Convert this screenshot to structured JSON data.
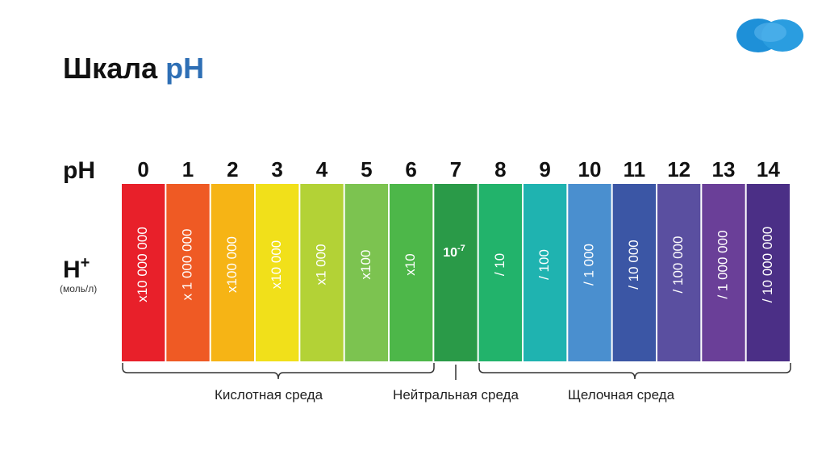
{
  "header": {
    "title": "Шкала",
    "title_accent": "pH"
  },
  "row_labels": {
    "ph": "pH",
    "h": "H",
    "h_sup": "+",
    "unit": "(моль/л)"
  },
  "cells": [
    {
      "ph": "0",
      "h": "x10 000 000",
      "color": "#e8202a"
    },
    {
      "ph": "1",
      "h": "x 1 000 000",
      "color": "#ef5a24"
    },
    {
      "ph": "2",
      "h": "x100 000",
      "color": "#f6b415"
    },
    {
      "ph": "3",
      "h": "x10 000",
      "color": "#f1e01a"
    },
    {
      "ph": "4",
      "h": "x1 000",
      "color": "#b3d236"
    },
    {
      "ph": "5",
      "h": "x100",
      "color": "#7cc350"
    },
    {
      "ph": "6",
      "h": "x10",
      "color": "#4db749"
    },
    {
      "ph": "7",
      "h": "10",
      "h_sup": "-7",
      "color": "#2a9a48"
    },
    {
      "ph": "8",
      "h": "/ 10",
      "color": "#22b36b"
    },
    {
      "ph": "9",
      "h": "/ 100",
      "color": "#1fb3b0"
    },
    {
      "ph": "10",
      "h": "/ 1 000",
      "color": "#4a8fcf"
    },
    {
      "ph": "11",
      "h": "/ 10 000",
      "color": "#3b56a5"
    },
    {
      "ph": "12",
      "h": "/ 100 000",
      "color": "#5a4fa0"
    },
    {
      "ph": "13",
      "h": "/ 1 000 000",
      "color": "#6a3f98"
    },
    {
      "ph": "14",
      "h": "/ 10 000 000",
      "color": "#4b2f86"
    }
  ],
  "ranges": [
    "Кислотная среда",
    "Нейтральная среда",
    "Щелочная среда"
  ]
}
